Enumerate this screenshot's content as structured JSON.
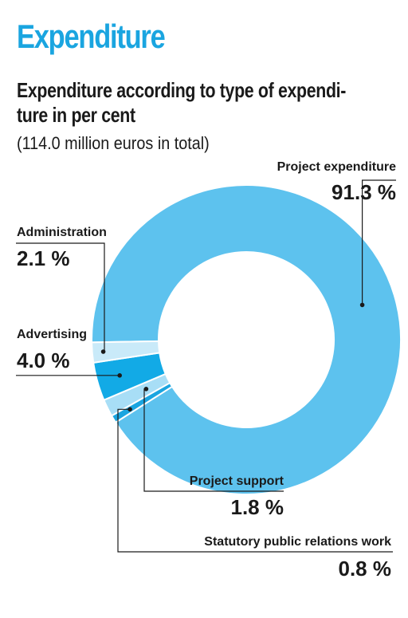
{
  "heading": "Expenditure",
  "chart_data": {
    "type": "pie",
    "title": "Expenditure according to type of expendi-ture in per cent",
    "title_lines": [
      "Expenditure according to type of expendi-",
      "ture in per cent"
    ],
    "subtitle": "(114.0 million euros in total)",
    "donut": true,
    "unit": "%",
    "slices": [
      {
        "name": "Project expenditure",
        "value": 91.3,
        "label": "91.3 %",
        "color": "#5dc2ee"
      },
      {
        "name": "Statutory public relations work",
        "value": 0.8,
        "label": "0.8 %",
        "color": "#1aa5e0"
      },
      {
        "name": "Project support",
        "value": 1.8,
        "label": "1.8 %",
        "color": "#a8def6"
      },
      {
        "name": "Advertising",
        "value": 4.0,
        "label": "4.0 %",
        "color": "#12aae6"
      },
      {
        "name": "Administration",
        "value": 2.1,
        "label": "2.1 %",
        "color": "#c9eaf9"
      }
    ],
    "separator_color": "#ffffff",
    "leader_color": "#1a1a1a"
  }
}
